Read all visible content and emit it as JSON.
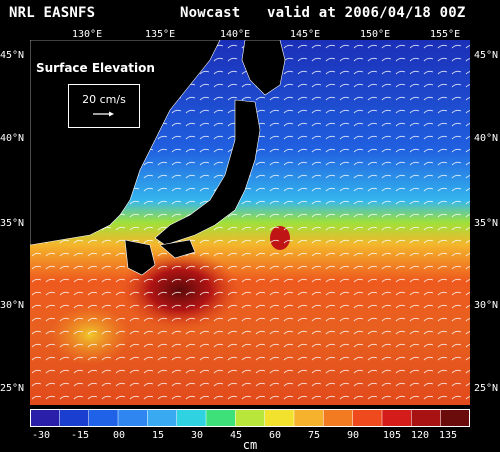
{
  "header": {
    "model": "NRL EASNFS",
    "product": "Nowcast",
    "valid": "valid at 2006/04/18 00Z"
  },
  "map": {
    "lon_ticks": [
      "130°E",
      "135°E",
      "140°E",
      "145°E",
      "150°E",
      "155°E"
    ],
    "lat_ticks": [
      "45°N",
      "40°N",
      "35°N",
      "30°N",
      "25°N"
    ],
    "field": "Surface Elevation",
    "reference_vector": "20 cm/s",
    "land_color": "#000000",
    "vector_color": "#ffffff"
  },
  "colorbar": {
    "tick_labels": [
      "-30",
      "-15",
      "00",
      "15",
      "30",
      "45",
      "60",
      "75",
      "90",
      "105",
      "120",
      "135"
    ],
    "units": "cm",
    "colors": [
      "#2a1fa8",
      "#1a3fd0",
      "#1f62e8",
      "#2f86f0",
      "#39aaf2",
      "#2fd2e0",
      "#3ee07a",
      "#b8e63a",
      "#f2e22e",
      "#f6b22c",
      "#f27b22",
      "#ee4a1e",
      "#d41d1a",
      "#a81212",
      "#6a0c0c"
    ]
  }
}
